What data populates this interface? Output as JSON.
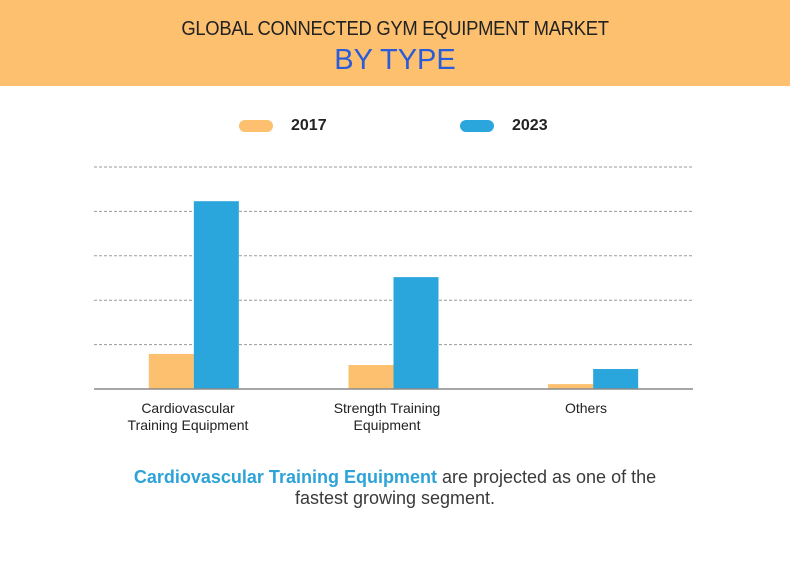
{
  "header": {
    "title": "GLOBAL CONNECTED GYM EQUIPMENT MARKET",
    "subtitle": "BY TYPE"
  },
  "colors": {
    "header_bg": "#fcc06e",
    "series_2017": "#fcc06e",
    "series_2023": "#2ba6dc",
    "subtitle": "#2a5bd8",
    "highlight": "#2ea3d8"
  },
  "legend": [
    {
      "label": "2017",
      "color": "#fcc06e"
    },
    {
      "label": "2023",
      "color": "#2ba6dc"
    }
  ],
  "chart_data": {
    "type": "bar",
    "title": "GLOBAL CONNECTED GYM EQUIPMENT MARKET BY TYPE",
    "categories": [
      "Cardiovascular Training Equipment",
      "Strength Training Equipment",
      "Others"
    ],
    "category_lines": [
      [
        "Cardiovascular",
        "Training Equipment"
      ],
      [
        "Strength Training",
        "Equipment"
      ],
      [
        "Others"
      ]
    ],
    "series": [
      {
        "name": "2017",
        "values": [
          0.79,
          0.54,
          0.11
        ]
      },
      {
        "name": "2023",
        "values": [
          4.23,
          2.52,
          0.45
        ]
      }
    ],
    "ylim": [
      0,
      5
    ],
    "y_unit": "relative (gridline units, no axis labels shown)",
    "grid": true,
    "gridlines": 5,
    "legend_position": "top-center",
    "xlabel": "",
    "ylabel": ""
  },
  "caption": {
    "highlight": "Cardiovascular Training Equipment",
    "rest_line1": " are projected as one of the",
    "line2": "fastest growing segment."
  }
}
